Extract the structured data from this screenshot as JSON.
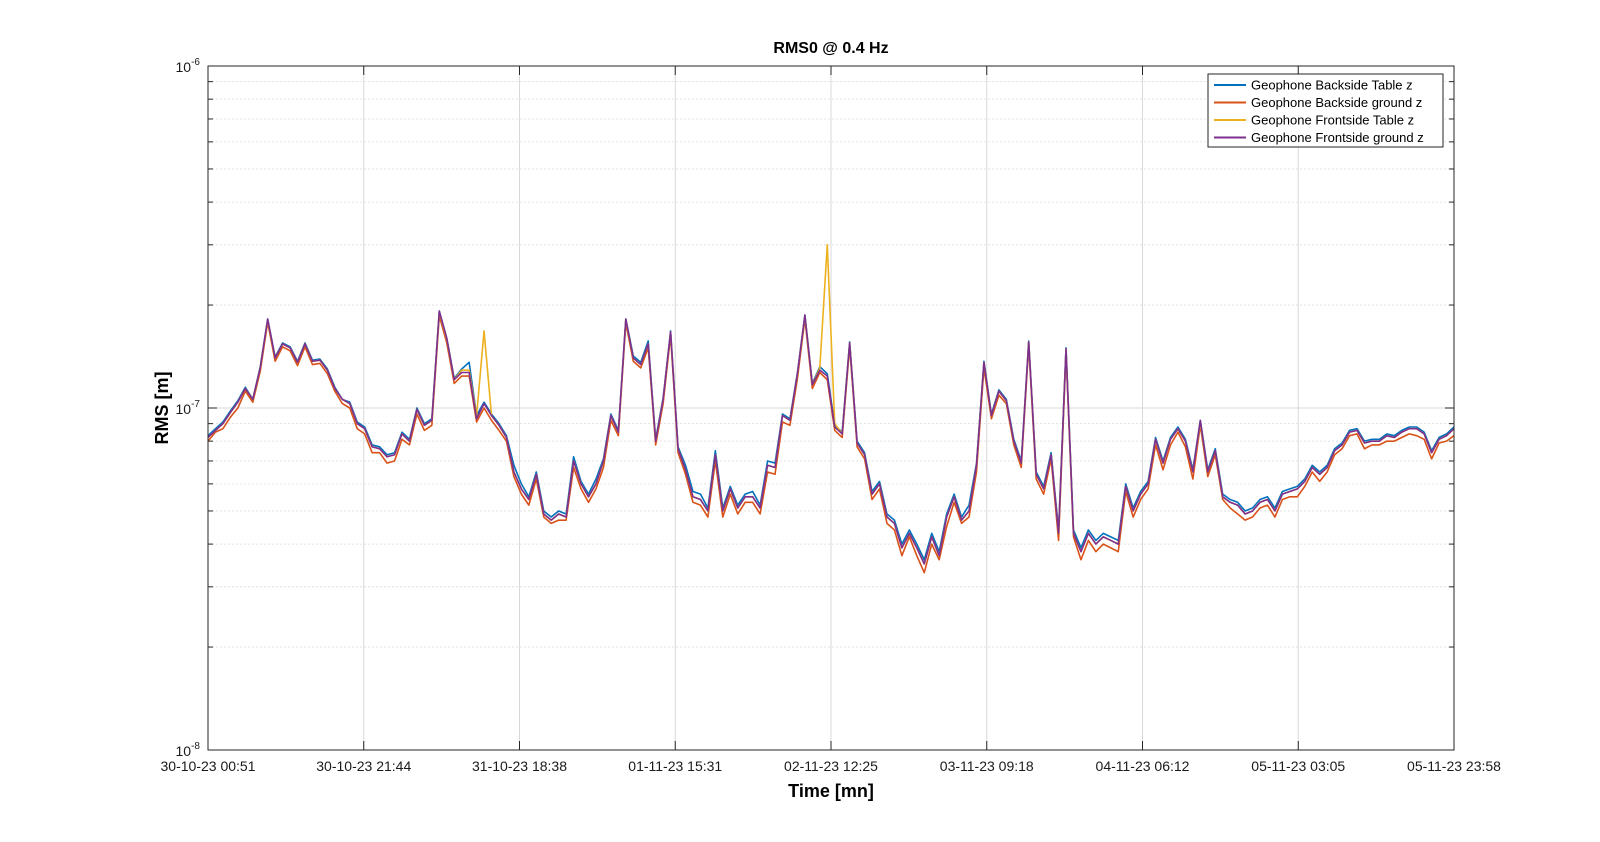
{
  "chart_data": {
    "type": "line",
    "title": "RMS0 @ 0.4 Hz",
    "xlabel": "Time [mn]",
    "ylabel": "RMS [m]",
    "yscale": "log",
    "ylim": [
      1e-08,
      1e-06
    ],
    "y_ticks": [
      {
        "base": "10",
        "exp": "-8"
      },
      {
        "base": "10",
        "exp": "-7"
      },
      {
        "base": "10",
        "exp": "-6"
      }
    ],
    "x_ticks": [
      "30-10-23 00:51",
      "30-10-23 21:44",
      "31-10-23 18:38",
      "01-11-23 15:31",
      "02-11-23 12:25",
      "03-11-23 09:18",
      "04-11-23 06:12",
      "05-11-23 03:05",
      "05-11-23 23:58"
    ],
    "grid": true,
    "minor_grid": true,
    "legend_position": "top-right",
    "series": [
      {
        "name": "Geophone Backside Table z",
        "color": "#0072BD",
        "values": [
          8.3e-08,
          8.7e-08,
          9.1e-08,
          9.8e-08,
          1.05e-07,
          1.15e-07,
          1.06e-07,
          1.32e-07,
          1.82e-07,
          1.41e-07,
          1.55e-07,
          1.51e-07,
          1.37e-07,
          1.55e-07,
          1.38e-07,
          1.39e-07,
          1.3e-07,
          1.15e-07,
          1.06e-07,
          1.04e-07,
          9.1e-08,
          8.8e-08,
          7.8e-08,
          7.7e-08,
          7.3e-08,
          7.4e-08,
          8.5e-08,
          8.1e-08,
          1e-07,
          9e-08,
          9.3e-08,
          1.92e-07,
          1.6e-07,
          1.22e-07,
          1.3e-07,
          1.36e-07,
          9.5e-08,
          1.04e-07,
          9.6e-08,
          9e-08,
          8.3e-08,
          6.8e-08,
          6e-08,
          5.5e-08,
          6.5e-08,
          5e-08,
          4.8e-08,
          5e-08,
          4.9e-08,
          7.2e-08,
          6.1e-08,
          5.6e-08,
          6.2e-08,
          7.1e-08,
          9.6e-08,
          8.6e-08,
          1.82e-07,
          1.42e-07,
          1.36e-07,
          1.57e-07,
          8.1e-08,
          1.07e-07,
          1.68e-07,
          7.7e-08,
          6.8e-08,
          5.7e-08,
          5.6e-08,
          5.1e-08,
          7.5e-08,
          5.1e-08,
          5.9e-08,
          5.2e-08,
          5.6e-08,
          5.7e-08,
          5.2e-08,
          7e-08,
          6.9e-08,
          9.6e-08,
          9.3e-08,
          1.27e-07,
          1.87e-07,
          1.18e-07,
          1.32e-07,
          1.26e-07,
          8.9e-08,
          8.5e-08,
          1.56e-07,
          8e-08,
          7.4e-08,
          5.7e-08,
          6.1e-08,
          4.9e-08,
          4.7e-08,
          4e-08,
          4.4e-08,
          4e-08,
          3.6e-08,
          4.3e-08,
          3.8e-08,
          4.9e-08,
          5.6e-08,
          4.8e-08,
          5.2e-08,
          6.9e-08,
          1.37e-07,
          9.6e-08,
          1.13e-07,
          1.06e-07,
          8.1e-08,
          7e-08,
          1.57e-07,
          6.5e-08,
          5.9e-08,
          7.4e-08,
          4.4e-08,
          1.5e-07,
          4.4e-08,
          3.9e-08,
          4.4e-08,
          4.1e-08,
          4.3e-08,
          4.2e-08,
          4.1e-08,
          6e-08,
          5.1e-08,
          5.7e-08,
          6.1e-08,
          8.2e-08,
          7e-08,
          8.2e-08,
          8.8e-08,
          8.1e-08,
          6.6e-08,
          9.2e-08,
          6.6e-08,
          7.6e-08,
          5.6e-08,
          5.4e-08,
          5.3e-08,
          5e-08,
          5.1e-08,
          5.4e-08,
          5.5e-08,
          5.1e-08,
          5.7e-08,
          5.8e-08,
          5.9e-08,
          6.2e-08,
          6.8e-08,
          6.5e-08,
          6.8e-08,
          7.6e-08,
          7.9e-08,
          8.6e-08,
          8.7e-08,
          8e-08,
          8.1e-08,
          8.1e-08,
          8.4e-08,
          8.3e-08,
          8.6e-08,
          8.8e-08,
          8.8e-08,
          8.5e-08,
          7.5e-08,
          8.2e-08,
          8.4e-08,
          8.8e-08
        ]
      },
      {
        "name": "Geophone Backside ground z",
        "color": "#D95319",
        "values": [
          8e-08,
          8.5e-08,
          8.7e-08,
          9.4e-08,
          1e-07,
          1.12e-07,
          1.04e-07,
          1.28e-07,
          1.78e-07,
          1.37e-07,
          1.51e-07,
          1.47e-07,
          1.33e-07,
          1.51e-07,
          1.34e-07,
          1.35e-07,
          1.26e-07,
          1.12e-07,
          1.03e-07,
          1e-07,
          8.7e-08,
          8.4e-08,
          7.4e-08,
          7.4e-08,
          6.9e-08,
          7e-08,
          8.1e-08,
          7.8e-08,
          9.6e-08,
          8.6e-08,
          8.9e-08,
          1.86e-07,
          1.55e-07,
          1.18e-07,
          1.24e-07,
          1.24e-07,
          9.1e-08,
          1e-07,
          9.2e-08,
          8.6e-08,
          8e-08,
          6.3e-08,
          5.6e-08,
          5.2e-08,
          6.2e-08,
          4.8e-08,
          4.6e-08,
          4.7e-08,
          4.7e-08,
          6.7e-08,
          5.8e-08,
          5.3e-08,
          5.8e-08,
          6.7e-08,
          9.2e-08,
          8.3e-08,
          1.77e-07,
          1.37e-07,
          1.31e-07,
          1.5e-07,
          7.8e-08,
          1.03e-07,
          1.63e-07,
          7.4e-08,
          6.4e-08,
          5.3e-08,
          5.2e-08,
          4.8e-08,
          7e-08,
          4.8e-08,
          5.6e-08,
          4.9e-08,
          5.3e-08,
          5.3e-08,
          4.9e-08,
          6.5e-08,
          6.4e-08,
          9.1e-08,
          8.9e-08,
          1.22e-07,
          1.82e-07,
          1.14e-07,
          1.27e-07,
          1.21e-07,
          8.6e-08,
          8.2e-08,
          1.51e-07,
          7.7e-08,
          7.1e-08,
          5.4e-08,
          5.8e-08,
          4.6e-08,
          4.4e-08,
          3.7e-08,
          4.2e-08,
          3.7e-08,
          3.3e-08,
          4e-08,
          3.6e-08,
          4.5e-08,
          5.3e-08,
          4.6e-08,
          4.8e-08,
          6.5e-08,
          1.31e-07,
          9.3e-08,
          1.09e-07,
          1.03e-07,
          7.8e-08,
          6.7e-08,
          1.52e-07,
          6.2e-08,
          5.6e-08,
          7.1e-08,
          4.1e-08,
          1.45e-07,
          4.2e-08,
          3.6e-08,
          4.1e-08,
          3.8e-08,
          4e-08,
          3.9e-08,
          3.8e-08,
          5.7e-08,
          4.8e-08,
          5.4e-08,
          5.8e-08,
          7.8e-08,
          6.6e-08,
          7.8e-08,
          8.5e-08,
          7.7e-08,
          6.2e-08,
          8.9e-08,
          6.3e-08,
          7.3e-08,
          5.4e-08,
          5.1e-08,
          4.9e-08,
          4.7e-08,
          4.8e-08,
          5.1e-08,
          5.2e-08,
          4.8e-08,
          5.4e-08,
          5.5e-08,
          5.5e-08,
          5.9e-08,
          6.5e-08,
          6.1e-08,
          6.5e-08,
          7.3e-08,
          7.6e-08,
          8.3e-08,
          8.4e-08,
          7.6e-08,
          7.8e-08,
          7.8e-08,
          8e-08,
          8e-08,
          8.2e-08,
          8.4e-08,
          8.3e-08,
          8.1e-08,
          7.1e-08,
          7.9e-08,
          8e-08,
          8.3e-08
        ]
      },
      {
        "name": "Geophone Frontside Table z",
        "color": "#EDB120",
        "values": [
          8.2e-08,
          8.6e-08,
          9e-08,
          9.7e-08,
          1.04e-07,
          1.14e-07,
          1.06e-07,
          1.31e-07,
          1.81e-07,
          1.4e-07,
          1.54e-07,
          1.5e-07,
          1.36e-07,
          1.54e-07,
          1.37e-07,
          1.38e-07,
          1.29e-07,
          1.14e-07,
          1.06e-07,
          1.03e-07,
          9e-08,
          8.7e-08,
          7.7e-08,
          7.6e-08,
          7.2e-08,
          7.3e-08,
          8.4e-08,
          8e-08,
          9.9e-08,
          8.9e-08,
          9.2e-08,
          1.91e-07,
          1.59e-07,
          1.21e-07,
          1.29e-07,
          1.29e-07,
          9.5e-08,
          1.68e-07,
          9.5e-08,
          8.9e-08,
          8.2e-08,
          6.5e-08,
          5.8e-08,
          5.4e-08,
          6.4e-08,
          4.9e-08,
          4.7e-08,
          4.9e-08,
          4.8e-08,
          7e-08,
          6e-08,
          5.5e-08,
          6e-08,
          7e-08,
          9.5e-08,
          8.5e-08,
          1.81e-07,
          1.4e-07,
          1.34e-07,
          1.54e-07,
          8e-08,
          1.06e-07,
          1.67e-07,
          7.6e-08,
          6.6e-08,
          5.5e-08,
          5.4e-08,
          5e-08,
          7.3e-08,
          5e-08,
          5.8e-08,
          5.1e-08,
          5.5e-08,
          5.5e-08,
          5.1e-08,
          6.8e-08,
          6.7e-08,
          9.5e-08,
          9.2e-08,
          1.26e-07,
          1.86e-07,
          1.17e-07,
          1.31e-07,
          3e-07,
          9e-08,
          8.4e-08,
          1.55e-07,
          7.9e-08,
          7.3e-08,
          5.6e-08,
          6e-08,
          4.8e-08,
          4.6e-08,
          3.9e-08,
          4.3e-08,
          3.9e-08,
          3.5e-08,
          4.2e-08,
          3.7e-08,
          4.8e-08,
          5.5e-08,
          4.7e-08,
          5e-08,
          6.8e-08,
          1.36e-07,
          9.5e-08,
          1.12e-07,
          1.05e-07,
          8e-08,
          6.9e-08,
          1.56e-07,
          6.4e-08,
          5.8e-08,
          7.3e-08,
          4.3e-08,
          1.49e-07,
          4.3e-08,
          3.8e-08,
          4.3e-08,
          4e-08,
          4.2e-08,
          4.1e-08,
          4e-08,
          5.9e-08,
          5e-08,
          5.6e-08,
          6e-08,
          8.1e-08,
          6.9e-08,
          8.1e-08,
          8.7e-08,
          8e-08,
          6.5e-08,
          9.1e-08,
          6.5e-08,
          7.5e-08,
          5.5e-08,
          5.3e-08,
          5.2e-08,
          4.9e-08,
          5e-08,
          5.3e-08,
          5.4e-08,
          5e-08,
          5.6e-08,
          5.7e-08,
          5.8e-08,
          6.1e-08,
          6.7e-08,
          6.4e-08,
          6.7e-08,
          7.5e-08,
          7.8e-08,
          8.5e-08,
          8.6e-08,
          7.9e-08,
          8e-08,
          8e-08,
          8.3e-08,
          8.2e-08,
          8.5e-08,
          8.7e-08,
          8.7e-08,
          8.4e-08,
          7.4e-08,
          8.1e-08,
          8.3e-08,
          8.7e-08
        ]
      },
      {
        "name": "Geophone Frontside ground z",
        "color": "#7E2F8E",
        "values": [
          8.2e-08,
          8.6e-08,
          9e-08,
          9.7e-08,
          1.04e-07,
          1.14e-07,
          1.06e-07,
          1.31e-07,
          1.82e-07,
          1.4e-07,
          1.54e-07,
          1.5e-07,
          1.36e-07,
          1.54e-07,
          1.37e-07,
          1.38e-07,
          1.29e-07,
          1.14e-07,
          1.06e-07,
          1.03e-07,
          9e-08,
          8.7e-08,
          7.7e-08,
          7.6e-08,
          7.2e-08,
          7.3e-08,
          8.4e-08,
          8e-08,
          9.9e-08,
          8.9e-08,
          9.2e-08,
          1.92e-07,
          1.6e-07,
          1.21e-07,
          1.27e-07,
          1.27e-07,
          9.3e-08,
          1.03e-07,
          9.5e-08,
          8.9e-08,
          8.2e-08,
          6.5e-08,
          5.8e-08,
          5.4e-08,
          6.4e-08,
          4.9e-08,
          4.7e-08,
          4.9e-08,
          4.8e-08,
          7e-08,
          6e-08,
          5.5e-08,
          6e-08,
          7e-08,
          9.5e-08,
          8.5e-08,
          1.82e-07,
          1.4e-07,
          1.34e-07,
          1.54e-07,
          8e-08,
          1.06e-07,
          1.67e-07,
          7.6e-08,
          6.6e-08,
          5.5e-08,
          5.4e-08,
          5e-08,
          7.3e-08,
          5e-08,
          5.8e-08,
          5.1e-08,
          5.5e-08,
          5.5e-08,
          5.1e-08,
          6.8e-08,
          6.7e-08,
          9.5e-08,
          9.2e-08,
          1.26e-07,
          1.87e-07,
          1.17e-07,
          1.29e-07,
          1.24e-07,
          8.8e-08,
          8.4e-08,
          1.55e-07,
          7.9e-08,
          7.3e-08,
          5.6e-08,
          6e-08,
          4.8e-08,
          4.6e-08,
          3.9e-08,
          4.3e-08,
          3.9e-08,
          3.5e-08,
          4.2e-08,
          3.7e-08,
          4.8e-08,
          5.5e-08,
          4.7e-08,
          5e-08,
          6.8e-08,
          1.36e-07,
          9.5e-08,
          1.12e-07,
          1.05e-07,
          8e-08,
          6.9e-08,
          1.56e-07,
          6.4e-08,
          5.8e-08,
          7.3e-08,
          4.3e-08,
          1.49e-07,
          4.3e-08,
          3.8e-08,
          4.3e-08,
          4e-08,
          4.2e-08,
          4.1e-08,
          4e-08,
          5.9e-08,
          5e-08,
          5.6e-08,
          6e-08,
          8.1e-08,
          6.9e-08,
          8.1e-08,
          8.7e-08,
          8e-08,
          6.5e-08,
          9.2e-08,
          6.5e-08,
          7.5e-08,
          5.5e-08,
          5.3e-08,
          5.2e-08,
          4.9e-08,
          5e-08,
          5.3e-08,
          5.4e-08,
          5e-08,
          5.6e-08,
          5.7e-08,
          5.8e-08,
          6.1e-08,
          6.7e-08,
          6.4e-08,
          6.7e-08,
          7.5e-08,
          7.8e-08,
          8.5e-08,
          8.6e-08,
          7.9e-08,
          8e-08,
          8e-08,
          8.3e-08,
          8.2e-08,
          8.5e-08,
          8.7e-08,
          8.7e-08,
          8.4e-08,
          7.4e-08,
          8.1e-08,
          8.3e-08,
          8.7e-08
        ]
      }
    ]
  }
}
